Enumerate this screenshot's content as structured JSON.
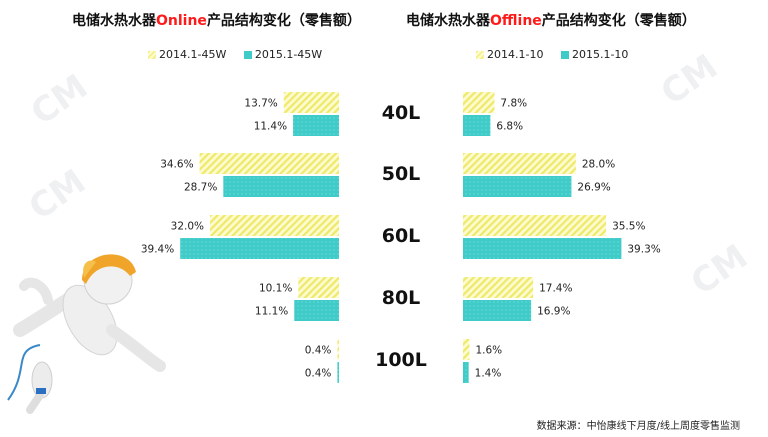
{
  "titles": {
    "left_prefix": "电储水热水器",
    "left_highlight": "Online",
    "left_suffix": "产品结构变化（零售额）",
    "right_prefix": "电储水热水器",
    "right_highlight": "Offline",
    "right_suffix": "产品结构变化（零售额）"
  },
  "legend": {
    "left_2014": "2014.1-45W",
    "left_2015": "2015.1-45W",
    "right_2014": "2014.1-10",
    "right_2015": "2015.1-10"
  },
  "colors": {
    "series_2014": "#f3f08a",
    "series_2015": "#3fcbc8"
  },
  "source": "数据来源：中怡康线下月度/线上周度零售监测",
  "watermark": "CM",
  "chart_data": [
    {
      "type": "bar",
      "orientation": "horizontal",
      "title": "电储水热水器Online产品结构变化（零售额）",
      "categories": [
        "40L",
        "50L",
        "60L",
        "80L",
        "100L"
      ],
      "series": [
        {
          "name": "2014.1-45W",
          "values": [
            13.7,
            34.6,
            32.0,
            10.1,
            0.4
          ],
          "labels": [
            "13.7%",
            "34.6%",
            "32.0%",
            "10.1%",
            "0.4%"
          ]
        },
        {
          "name": "2015.1-45W",
          "values": [
            11.4,
            28.7,
            39.4,
            11.1,
            0.4
          ],
          "labels": [
            "11.4%",
            "28.7%",
            "39.4%",
            "11.1%",
            "0.4%"
          ]
        }
      ],
      "unit": "%",
      "direction": "right-to-left"
    },
    {
      "type": "bar",
      "orientation": "horizontal",
      "title": "电储水热水器Offline产品结构变化（零售额）",
      "categories": [
        "40L",
        "50L",
        "60L",
        "80L",
        "100L"
      ],
      "series": [
        {
          "name": "2014.1-10",
          "values": [
            7.8,
            28.0,
            35.5,
            17.4,
            1.6
          ],
          "labels": [
            "7.8%",
            "28.0%",
            "35.5%",
            "17.4%",
            "1.6%"
          ]
        },
        {
          "name": "2015.1-10",
          "values": [
            6.8,
            26.9,
            39.3,
            16.9,
            1.4
          ],
          "labels": [
            "6.8%",
            "26.9%",
            "39.3%",
            "16.9%",
            "1.4%"
          ]
        }
      ],
      "unit": "%",
      "direction": "left-to-right"
    }
  ]
}
